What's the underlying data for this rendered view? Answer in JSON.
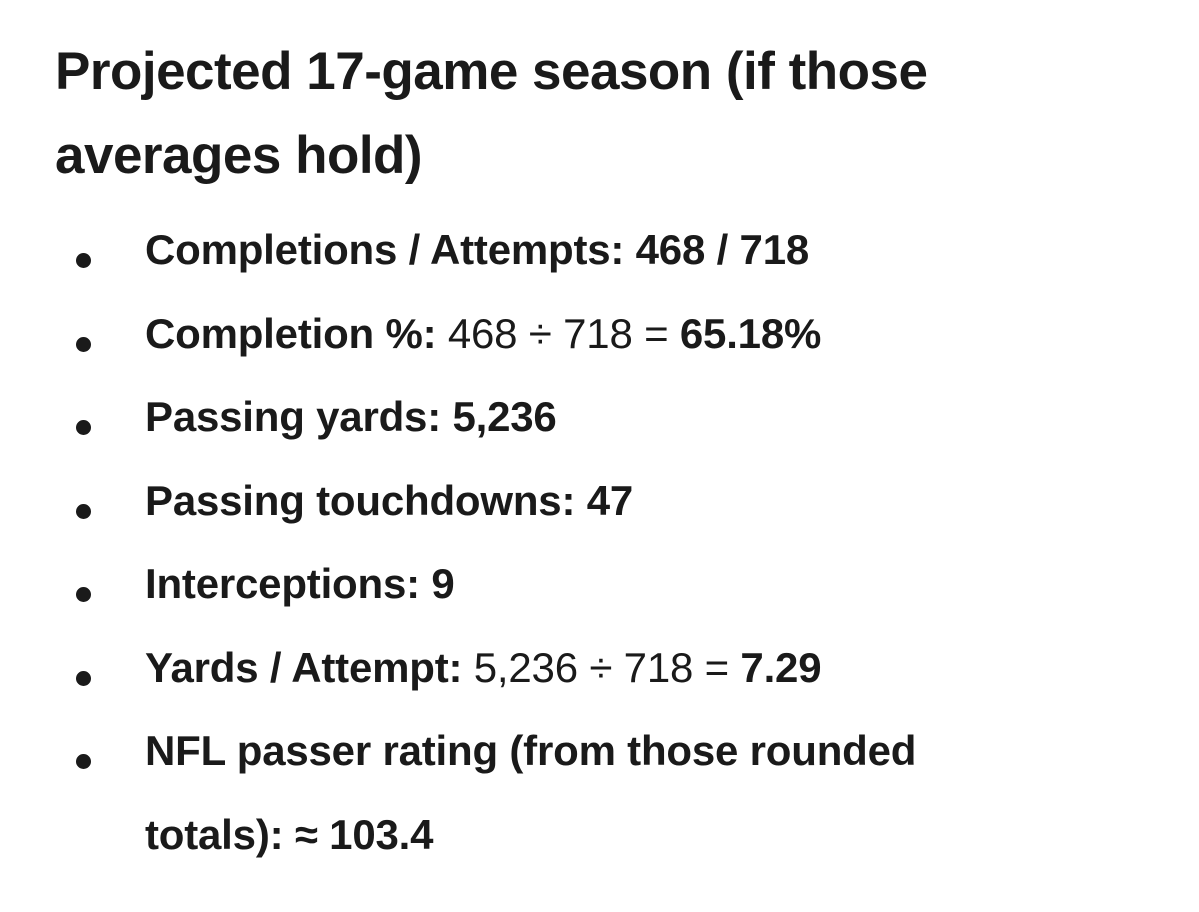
{
  "colors": {
    "background": "#ffffff",
    "text": "#1a1a1a"
  },
  "heading": {
    "text": "Projected 17-game season (if those averages hold)",
    "lines": [
      "Projected 17-game season (if those",
      "averages hold)"
    ]
  },
  "list": {
    "items": [
      {
        "lines": [
          [
            {
              "text": "Completions / Attempts: 468 / 718",
              "bold": true
            }
          ]
        ]
      },
      {
        "lines": [
          [
            {
              "text": "Completion %: ",
              "bold": true
            },
            {
              "text": "468 ÷ 718 = ",
              "bold": false
            },
            {
              "text": "65.18%",
              "bold": true
            }
          ]
        ]
      },
      {
        "lines": [
          [
            {
              "text": "Passing yards: 5,236",
              "bold": true
            }
          ]
        ]
      },
      {
        "lines": [
          [
            {
              "text": "Passing touchdowns: 47",
              "bold": true
            }
          ]
        ]
      },
      {
        "lines": [
          [
            {
              "text": "Interceptions: 9",
              "bold": true
            }
          ]
        ]
      },
      {
        "lines": [
          [
            {
              "text": "Yards / Attempt: ",
              "bold": true
            },
            {
              "text": "5,236 ÷ 718 = ",
              "bold": false
            },
            {
              "text": "7.29",
              "bold": true
            }
          ]
        ]
      },
      {
        "lines": [
          [
            {
              "text": "NFL passer rating (from those rounded",
              "bold": true
            }
          ],
          [
            {
              "text": "totals): ≈ 103.4",
              "bold": true
            }
          ]
        ]
      }
    ]
  }
}
